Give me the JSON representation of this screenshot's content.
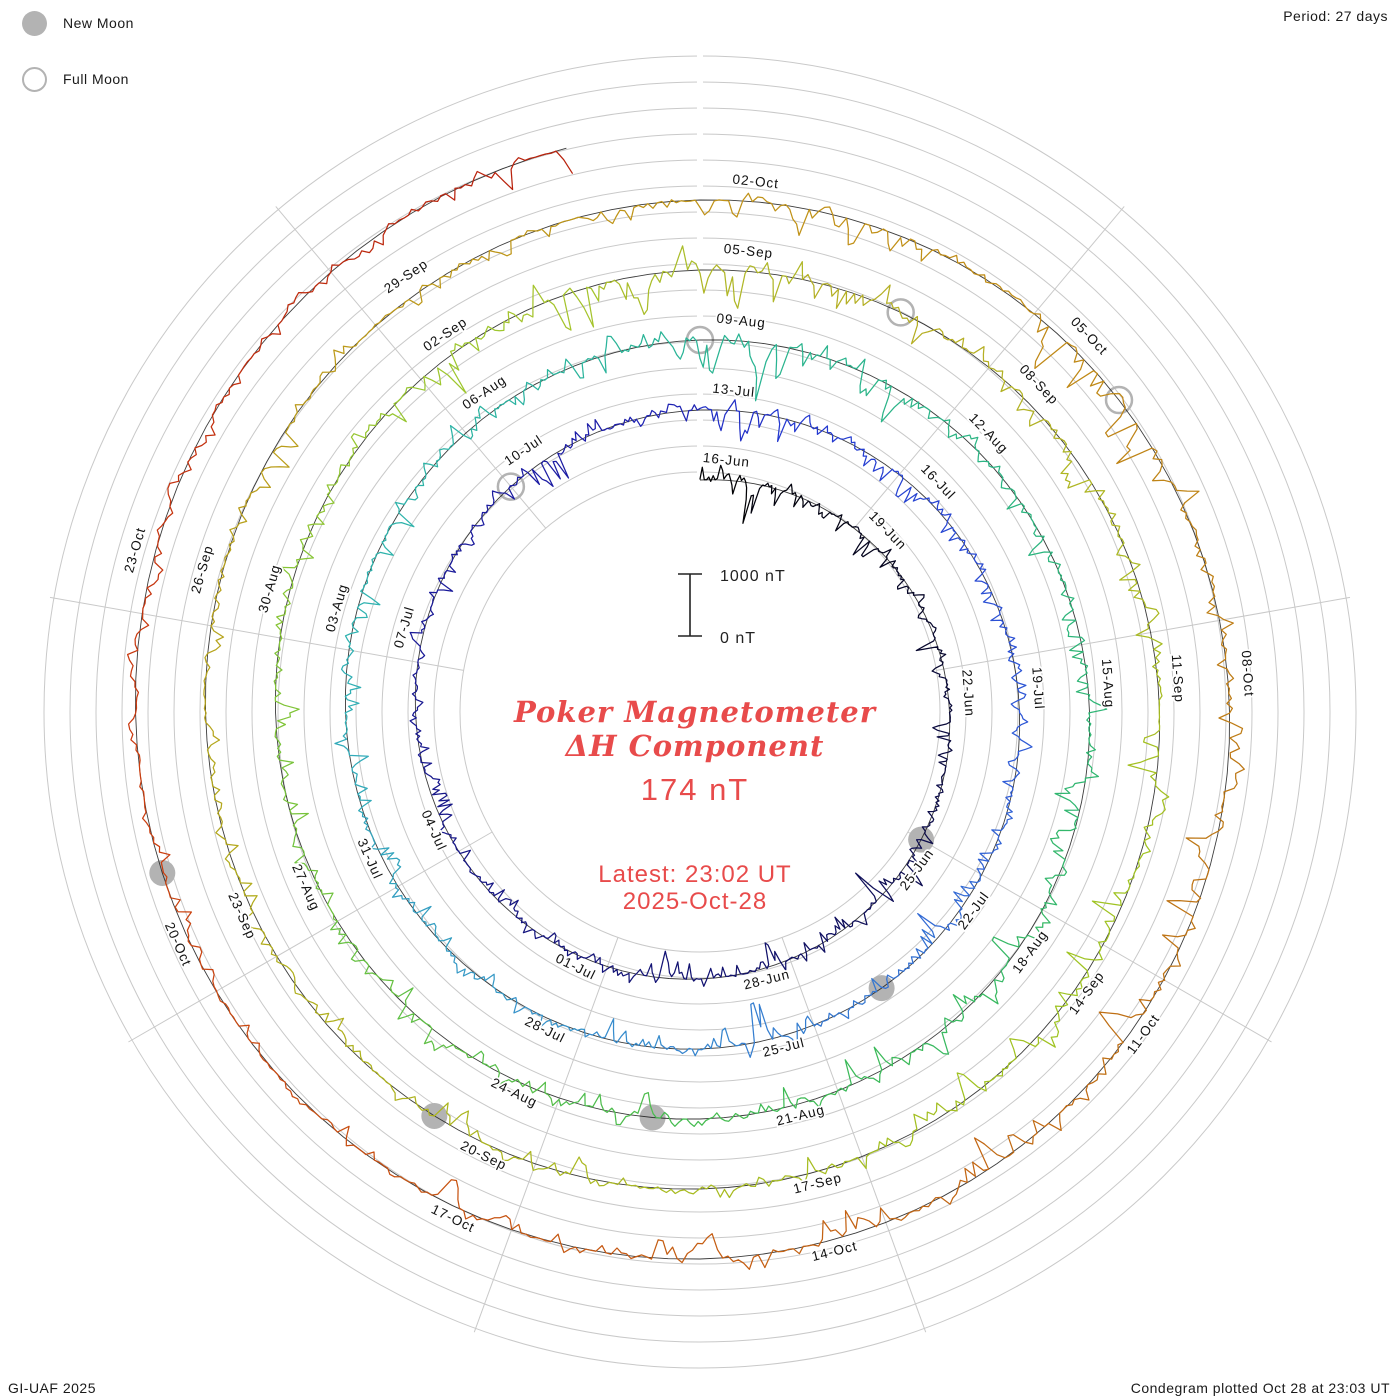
{
  "legend": {
    "new_moon": "New Moon",
    "full_moon": "Full Moon"
  },
  "period_label": "Period: 27 days",
  "credit_left": "GI-UAF 2025",
  "credit_right": "Condegram plotted Oct 28 at 23:03 UT",
  "center": {
    "title_line1": "Poker Magnetometer",
    "title_line2": "ΔH Component",
    "value": "174 nT",
    "latest_line1": "Latest: 23:02 UT",
    "latest_line2": "2025-Oct-28",
    "accent_color": "#e84b4b"
  },
  "scale": {
    "top_label": "1000 nT",
    "bottom_label": "0 nT"
  },
  "chart_data": {
    "type": "condegram-spiral-line",
    "series_name": "Poker Magnetometer ΔH (nT)",
    "station": "Poker",
    "component": "ΔH",
    "latest_value_nT": 174,
    "latest_time": "23:02 UT 2025-Oct-28",
    "start_date": "2025-06-16",
    "end_date": "2025-10-28",
    "period_days": 27,
    "scale_bar_nT": 1000,
    "label_step_days": 3,
    "date_labels": [
      "16-Jun",
      "19-Jun",
      "22-Jun",
      "25-Jun",
      "28-Jun",
      "01-Jul",
      "04-Jul",
      "07-Jul",
      "10-Jul",
      "13-Jul",
      "16-Jul",
      "19-Jul",
      "22-Jul",
      "25-Jul",
      "28-Jul",
      "31-Jul",
      "03-Aug",
      "06-Aug",
      "09-Aug",
      "12-Aug",
      "15-Aug",
      "18-Aug",
      "21-Aug",
      "24-Aug",
      "27-Aug",
      "30-Aug",
      "02-Sep",
      "05-Sep",
      "08-Sep",
      "11-Sep",
      "14-Sep",
      "17-Sep",
      "20-Sep",
      "23-Sep",
      "26-Sep",
      "29-Sep",
      "02-Oct",
      "05-Oct",
      "08-Oct",
      "11-Oct",
      "14-Oct",
      "17-Oct",
      "20-Oct",
      "23-Oct"
    ],
    "daily_peak_amplitude_nT": [
      600,
      450,
      300,
      500,
      420,
      300,
      280,
      400,
      350,
      500,
      650,
      600,
      450,
      350,
      300,
      280,
      260,
      300,
      340,
      280,
      240,
      220,
      260,
      300,
      620,
      520,
      380,
      500,
      420,
      340,
      300,
      340,
      420,
      360,
      300,
      480,
      520,
      420,
      360,
      650,
      320,
      300,
      340,
      380,
      360,
      330,
      380,
      420,
      480,
      400,
      360,
      340,
      480,
      580,
      700,
      560,
      480,
      420,
      380,
      420,
      460,
      420,
      380,
      520,
      560,
      460,
      420,
      360,
      380,
      430,
      410,
      380,
      350,
      330,
      360,
      390,
      370,
      520,
      780,
      680,
      520,
      600,
      560,
      500,
      380,
      420,
      440,
      400,
      470,
      570,
      620,
      660,
      560,
      510,
      410,
      350,
      300,
      280,
      300,
      320,
      280,
      250,
      260,
      280,
      300,
      280,
      260,
      300,
      350,
      400,
      380,
      550,
      520,
      420,
      500,
      480,
      440,
      400,
      380,
      420,
      600,
      520,
      340,
      300,
      260,
      230,
      240,
      260,
      230,
      210,
      200,
      210,
      240,
      420,
      560
    ],
    "color_stops": [
      {
        "day": 0,
        "color": "#000000"
      },
      {
        "day": 7,
        "color": "#0a0a3c"
      },
      {
        "day": 13,
        "color": "#12126e"
      },
      {
        "day": 20,
        "color": "#18188f"
      },
      {
        "day": 26,
        "color": "#1d1daa"
      },
      {
        "day": 28,
        "color": "#2336cf"
      },
      {
        "day": 35,
        "color": "#2f5ed6"
      },
      {
        "day": 42,
        "color": "#3890cc"
      },
      {
        "day": 48,
        "color": "#2fb2b2"
      },
      {
        "day": 54,
        "color": "#29b494"
      },
      {
        "day": 61,
        "color": "#2eb573"
      },
      {
        "day": 67,
        "color": "#41bb52"
      },
      {
        "day": 73,
        "color": "#74c33c"
      },
      {
        "day": 79,
        "color": "#a2c72d"
      },
      {
        "day": 83,
        "color": "#b8ad24"
      },
      {
        "day": 90,
        "color": "#9ec522"
      },
      {
        "day": 97,
        "color": "#adb51f"
      },
      {
        "day": 104,
        "color": "#bb9b1a"
      },
      {
        "day": 110,
        "color": "#c18f17"
      },
      {
        "day": 116,
        "color": "#bd7514"
      },
      {
        "day": 122,
        "color": "#c65b12"
      },
      {
        "day": 128,
        "color": "#cb3b0f"
      },
      {
        "day": 134,
        "color": "#b7200c"
      }
    ],
    "moon_events": {
      "new": [
        {
          "day": 9,
          "date": "25-Jun"
        },
        {
          "day": 38,
          "date": "24-Jul"
        },
        {
          "day": 68,
          "date": "23-Aug"
        },
        {
          "day": 97,
          "date": "21-Sep"
        },
        {
          "day": 127,
          "date": "21-Oct"
        }
      ],
      "full": [
        {
          "day": 24,
          "date": "10-Jul"
        },
        {
          "day": 54,
          "date": "09-Aug"
        },
        {
          "day": 83,
          "date": "07-Sep"
        },
        {
          "day": 112,
          "date": "06-Oct"
        }
      ]
    },
    "grid": {
      "rings": true,
      "ring_spacing_hint": "uniform",
      "spokes_every_deg": 40
    }
  }
}
